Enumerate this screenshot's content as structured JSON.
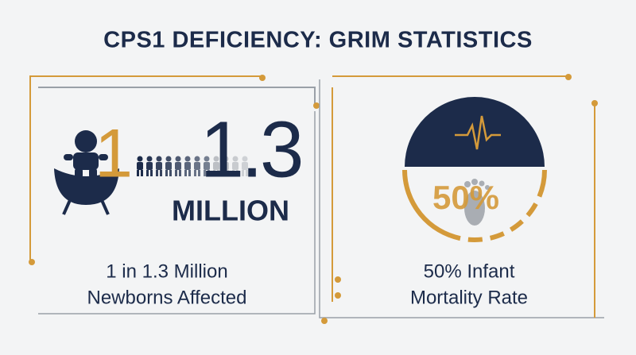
{
  "title": "CPS1 DEFICIENCY: GRIM STATISTICS",
  "left_panel": {
    "icon_number": "1",
    "big_number": "1.3",
    "big_unit": "MILLION",
    "caption": [
      "1 in 1.3 Million",
      "Newborns Affected"
    ]
  },
  "right_panel": {
    "gauge_label": "50%",
    "caption": [
      "50% Infant",
      "Mortality Rate"
    ]
  }
}
